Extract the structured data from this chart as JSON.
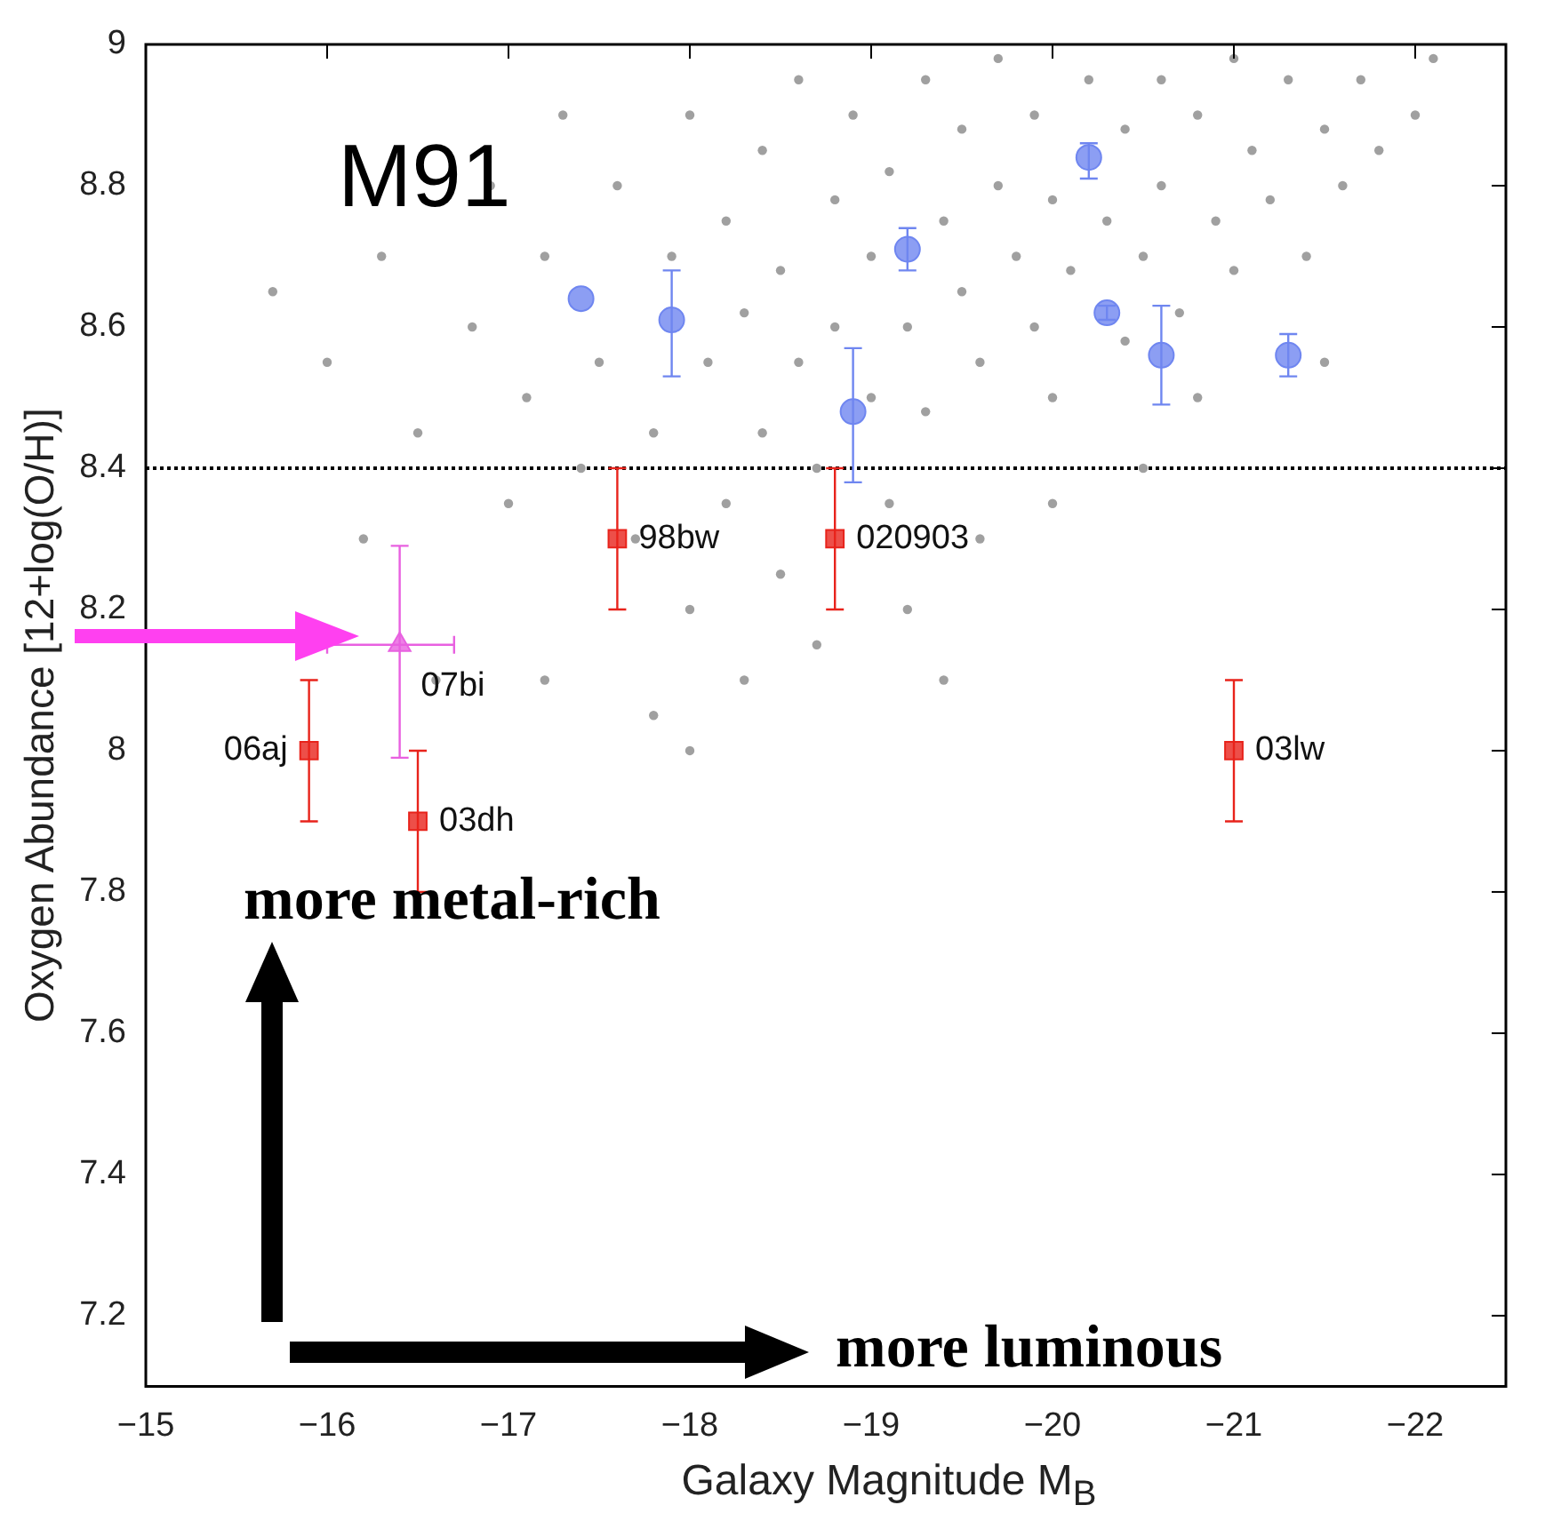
{
  "chart_data": {
    "type": "scatter",
    "xlabel": "Galaxy Magnitude M$_{B}$",
    "ylabel": "Oxygen Abundance [12+log(O/H)]",
    "xlim": [
      -15,
      -22.5
    ],
    "ylim": [
      7.1,
      9
    ],
    "xticks": [
      {
        "value": -15,
        "label": "−15"
      },
      {
        "value": -16,
        "label": "−16"
      },
      {
        "value": -17,
        "label": "−17"
      },
      {
        "value": -18,
        "label": "−18"
      },
      {
        "value": -19,
        "label": "−19"
      },
      {
        "value": -20,
        "label": "−20"
      },
      {
        "value": -21,
        "label": "−21"
      },
      {
        "value": -22,
        "label": "−22"
      }
    ],
    "yticks": [
      7.2,
      7.4,
      7.6,
      7.8,
      8,
      8.2,
      8.4,
      8.6,
      8.8,
      9
    ],
    "grid": false,
    "legend": false,
    "ref_lines": [
      {
        "axis": "y",
        "value": 8.4,
        "color": "#000000",
        "line_style": "dotted"
      }
    ],
    "series": [
      {
        "color": "#a0a0a0",
        "marker": "circle",
        "x": [
          -16.0,
          -16.3,
          -16.5,
          -16.8,
          -16.9,
          -17.0,
          -17.1,
          -17.2,
          -17.3,
          -17.4,
          -17.5,
          -17.6,
          -17.7,
          -17.8,
          -17.9,
          -18.0,
          -18.0,
          -18.1,
          -18.2,
          -18.2,
          -18.3,
          -18.4,
          -18.4,
          -18.5,
          -18.5,
          -18.6,
          -18.6,
          -18.7,
          -18.8,
          -18.8,
          -18.9,
          -19.0,
          -19.0,
          -19.1,
          -19.1,
          -19.2,
          -19.3,
          -19.3,
          -19.4,
          -19.5,
          -19.5,
          -19.6,
          -19.7,
          -19.7,
          -19.8,
          -19.9,
          -19.9,
          -20.0,
          -20.0,
          -20.1,
          -20.2,
          -20.3,
          -20.4,
          -20.4,
          -20.5,
          -20.6,
          -20.6,
          -20.7,
          -20.8,
          -20.9,
          -21.0,
          -21.0,
          -21.1,
          -21.2,
          -21.3,
          -21.4,
          -21.5,
          -21.6,
          -21.7,
          -21.8,
          -22.0,
          -22.1,
          -17.2,
          -17.8,
          -18.3,
          -18.7,
          -19.2,
          -19.6,
          -20.0,
          -20.5,
          -16.2,
          -16.6,
          -15.7,
          -19.4,
          -18.0,
          -20.8,
          -21.5
        ],
        "values": [
          8.55,
          8.7,
          8.45,
          8.6,
          8.8,
          8.35,
          8.5,
          8.7,
          8.9,
          8.4,
          8.55,
          8.8,
          8.3,
          8.45,
          8.7,
          8.9,
          8.2,
          8.55,
          8.35,
          8.75,
          8.62,
          8.85,
          8.45,
          8.25,
          8.68,
          8.95,
          8.55,
          8.4,
          8.78,
          8.6,
          8.9,
          8.5,
          8.7,
          8.35,
          8.82,
          8.6,
          8.95,
          8.48,
          8.75,
          8.65,
          8.88,
          8.55,
          8.8,
          8.98,
          8.7,
          8.6,
          8.9,
          8.78,
          8.5,
          8.68,
          8.95,
          8.75,
          8.58,
          8.88,
          8.7,
          8.95,
          8.8,
          8.62,
          8.9,
          8.75,
          8.98,
          8.68,
          8.85,
          8.78,
          8.95,
          8.7,
          8.88,
          8.8,
          8.95,
          8.85,
          8.9,
          8.98,
          8.1,
          8.05,
          8.1,
          8.15,
          8.2,
          8.3,
          8.35,
          8.4,
          8.3,
          8.1,
          8.65,
          8.1,
          8.0,
          8.5,
          8.55
        ]
      },
      {
        "color": "#6f86f0",
        "marker": "circle",
        "x": [
          -17.4,
          -17.9,
          -18.9,
          -19.2,
          -20.2,
          -20.3,
          -20.6,
          -21.3
        ],
        "values": [
          8.64,
          8.61,
          8.48,
          8.71,
          8.84,
          8.62,
          8.56,
          8.56
        ],
        "errors": [
          null,
          [
            8.53,
            8.68
          ],
          [
            8.38,
            8.57
          ],
          [
            8.68,
            8.74
          ],
          [
            8.81,
            8.86
          ],
          [
            8.61,
            8.63
          ],
          [
            8.49,
            8.63
          ],
          [
            8.53,
            8.59
          ]
        ]
      },
      {
        "color": "#e8231b",
        "marker": "square",
        "x": [
          -17.6,
          -18.8,
          -15.9,
          -16.5,
          -21.0
        ],
        "values": [
          8.3,
          8.3,
          8.0,
          7.9,
          8.0
        ],
        "errors": [
          [
            8.2,
            8.4
          ],
          [
            8.2,
            8.4
          ],
          [
            7.9,
            8.1
          ],
          [
            7.8,
            8.0
          ],
          [
            7.9,
            8.1
          ]
        ]
      },
      {
        "color": "#e860e0",
        "marker": "triangle",
        "x": [
          -16.4
        ],
        "values": [
          8.15
        ],
        "errors": [
          [
            7.99,
            8.29
          ]
        ],
        "xerrors": [
          [
            -16.0,
            -16.7
          ]
        ]
      }
    ],
    "annotations": [
      "M91",
      "more metal-rich",
      "more luminous",
      {
        "text": "98bw",
        "x": -17.6,
        "y": 8.3
      },
      {
        "text": "020903",
        "x": -18.8,
        "y": 8.3
      },
      {
        "text": "06aj",
        "x": -15.9,
        "y": 8.0
      },
      {
        "text": "03dh",
        "x": -16.5,
        "y": 7.9
      },
      {
        "text": "03lw",
        "x": -21.0,
        "y": 8.0
      },
      {
        "text": "07bi",
        "x": -16.4,
        "y": 8.15
      }
    ]
  }
}
